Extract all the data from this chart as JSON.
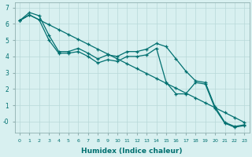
{
  "xlabel": "Humidex (Indice chaleur)",
  "x": [
    0,
    1,
    2,
    3,
    4,
    5,
    6,
    7,
    8,
    9,
    10,
    11,
    12,
    13,
    14,
    15,
    16,
    17,
    18,
    19,
    20,
    21,
    22,
    23
  ],
  "line_jagged": [
    6.2,
    6.7,
    6.5,
    5.3,
    4.3,
    4.3,
    4.5,
    4.2,
    3.85,
    4.1,
    4.0,
    4.3,
    4.3,
    4.45,
    4.8,
    4.6,
    3.85,
    3.1,
    2.5,
    2.4,
    0.9,
    -0.05,
    -0.3,
    -0.2
  ],
  "line_upper": [
    6.2,
    6.55,
    6.25,
    5.95,
    5.65,
    5.35,
    5.05,
    4.75,
    4.45,
    4.15,
    3.85,
    3.55,
    3.25,
    2.95,
    2.65,
    2.35,
    2.05,
    1.75,
    1.45,
    1.15,
    0.85,
    0.55,
    0.25,
    -0.05
  ],
  "line_lower": [
    6.2,
    6.55,
    6.25,
    5.0,
    4.2,
    4.2,
    4.3,
    4.0,
    3.6,
    3.8,
    3.7,
    4.0,
    4.0,
    4.1,
    4.5,
    2.4,
    1.7,
    1.7,
    2.4,
    2.3,
    0.8,
    -0.1,
    -0.35,
    -0.25
  ],
  "line_color": "#007070",
  "bg_color": "#d8f0f0",
  "grid_color": "#b8d8d8",
  "ylim": [
    -0.7,
    7.3
  ],
  "xlim": [
    -0.5,
    23.5
  ]
}
